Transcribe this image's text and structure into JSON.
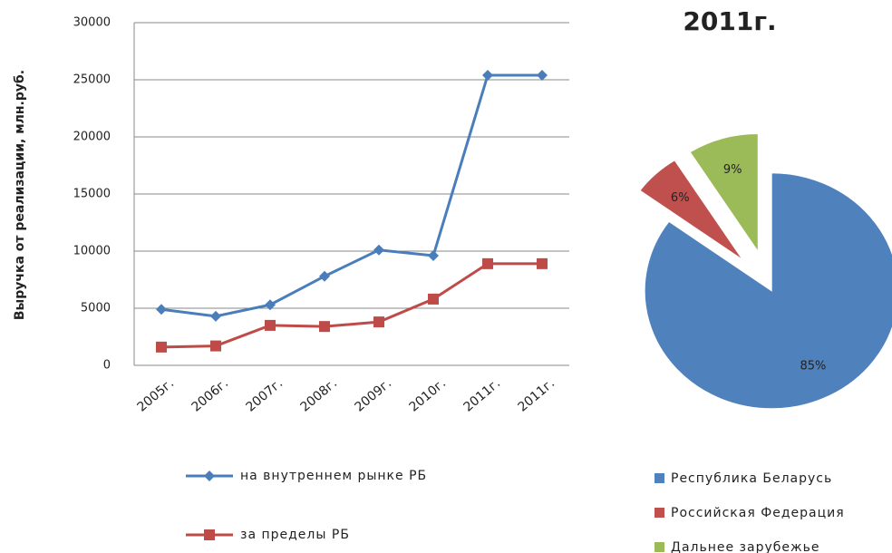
{
  "chart_data": [
    {
      "type": "line",
      "y_label": "Выручка от реализации, млн.руб.",
      "categories": [
        "2005г.",
        "2006г.",
        "2007г.",
        "2008г.",
        "2009г.",
        "2010г.",
        "2011г.",
        "2011г."
      ],
      "series": [
        {
          "name": "на внутреннем рынке РБ",
          "color": "#4a7ebb",
          "marker": "diamond",
          "values": [
            4900,
            4300,
            5300,
            7800,
            10100,
            9600,
            25400,
            25400
          ]
        },
        {
          "name": "за пределы РБ",
          "color": "#be4b48",
          "marker": "square",
          "values": [
            1600,
            1700,
            3500,
            3400,
            3800,
            5800,
            8900,
            8900
          ]
        }
      ],
      "ylim": [
        0,
        30000
      ],
      "yticks": [
        0,
        5000,
        10000,
        15000,
        20000,
        25000,
        30000
      ],
      "grid": true
    },
    {
      "type": "pie",
      "title": "2011г.",
      "categories": [
        "Республика Беларусь",
        "Российская Федерация",
        "Дальнее зарубежье"
      ],
      "values": [
        85,
        6,
        9
      ],
      "value_labels": [
        "85%",
        "6%",
        "9%"
      ],
      "colors": [
        "#4f81bd",
        "#c0504d",
        "#9bbb59"
      ],
      "exploded": [
        false,
        true,
        true
      ]
    }
  ]
}
